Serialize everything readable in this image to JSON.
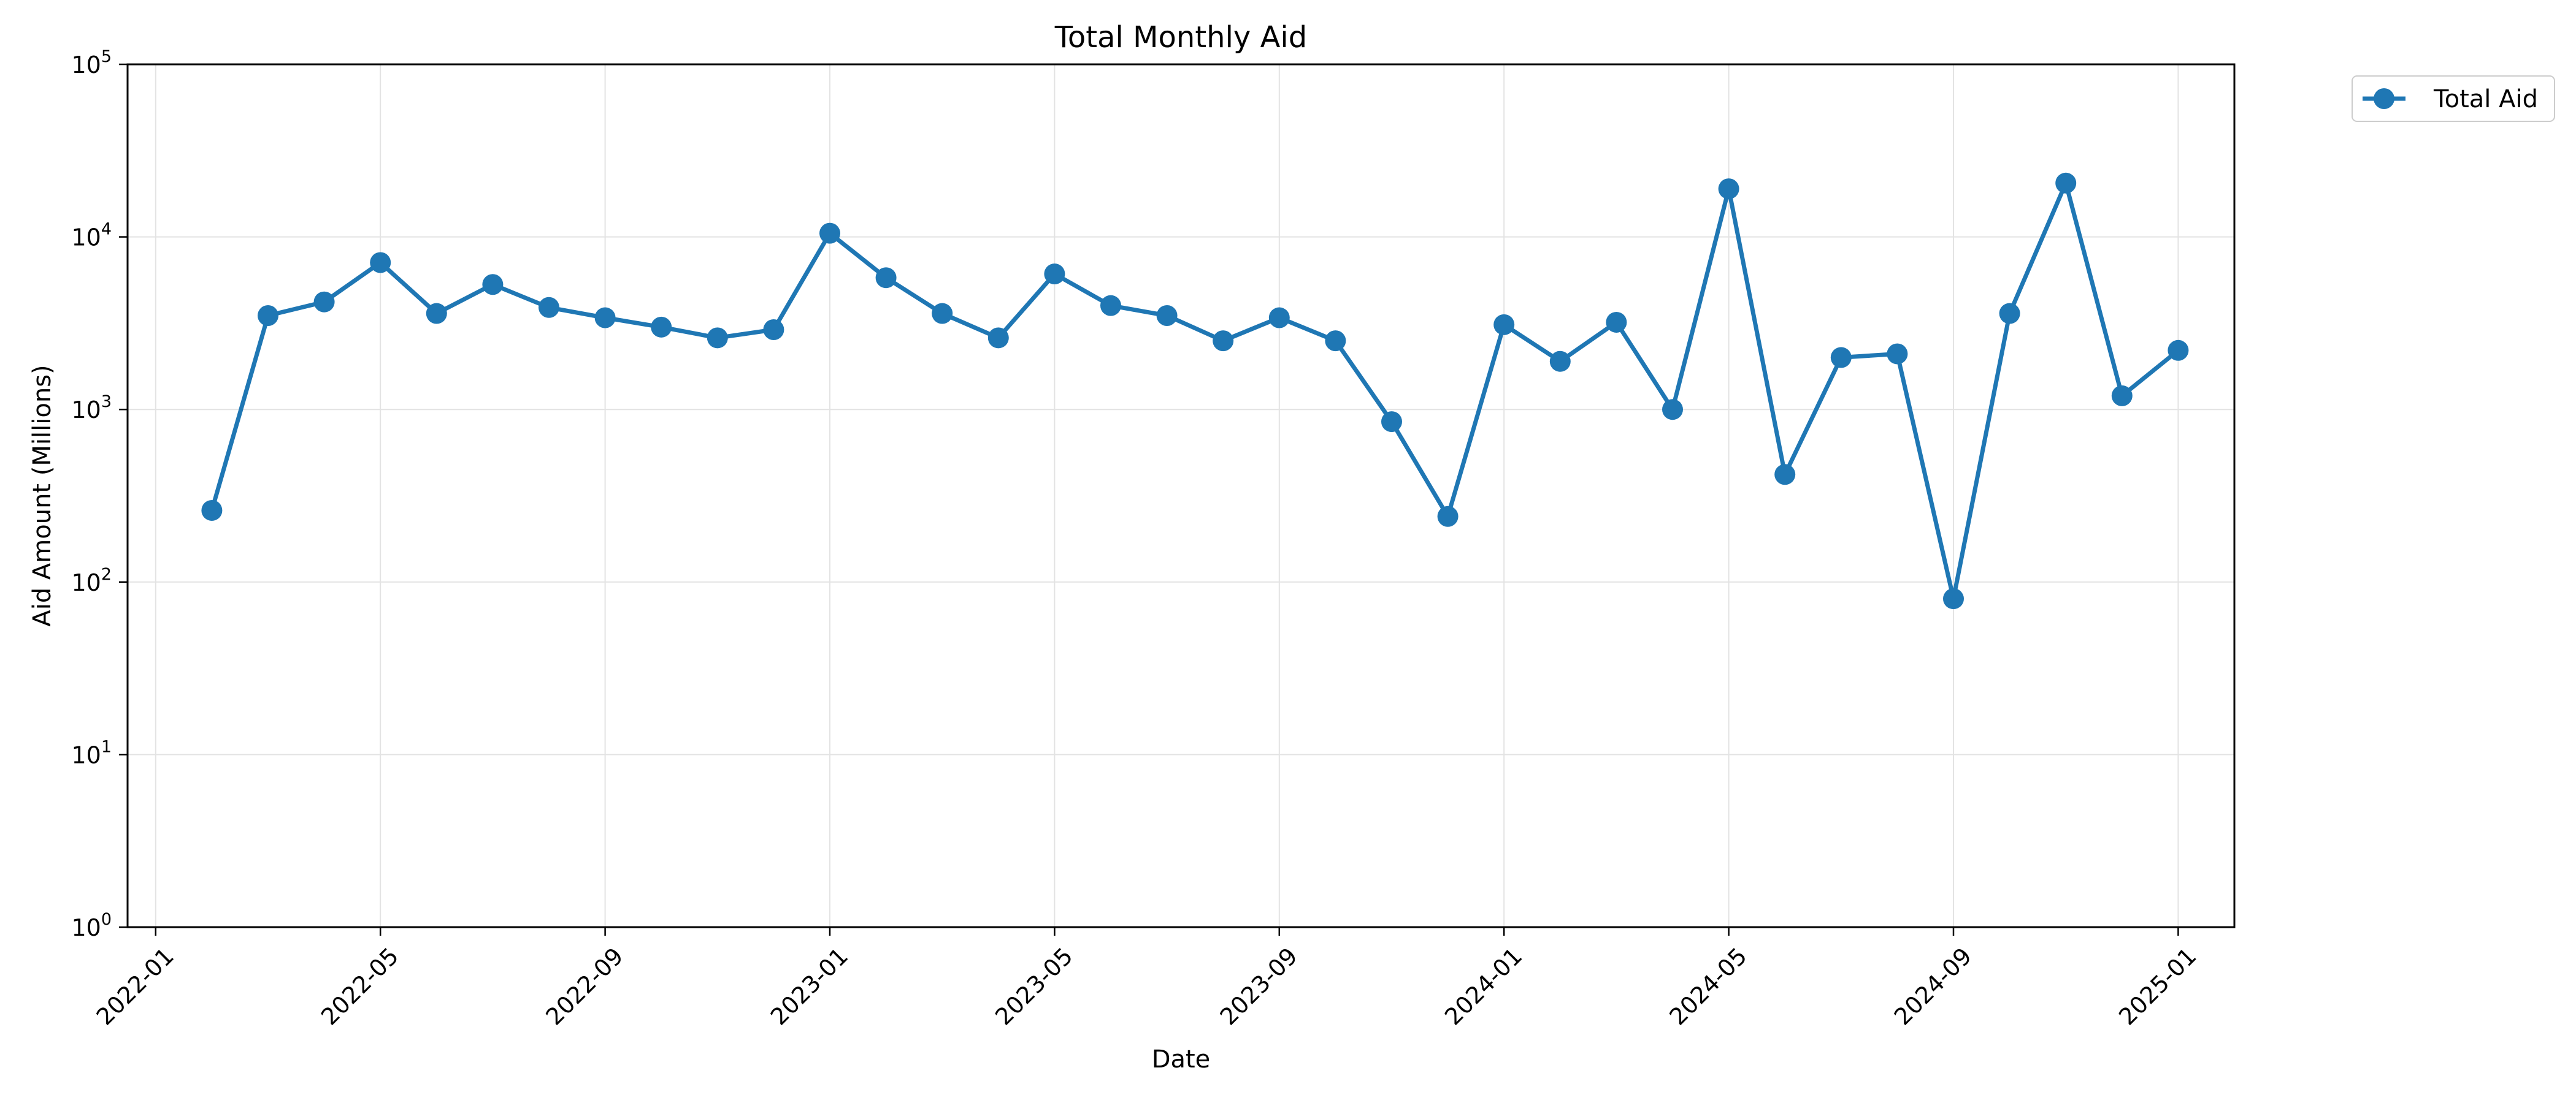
{
  "chart_data": {
    "type": "line",
    "title": "Total Monthly Aid",
    "xlabel": "Date",
    "ylabel": "Aid Amount (Millions)",
    "yscale": "log",
    "ylim": [
      1,
      100000
    ],
    "xlim": [
      "2021-12",
      "2025-02"
    ],
    "grid": true,
    "legend_position": "outside-top-right",
    "x_ticks": [
      "2022-01",
      "2022-05",
      "2022-09",
      "2023-01",
      "2023-05",
      "2023-09",
      "2024-01",
      "2024-05",
      "2024-09",
      "2025-01"
    ],
    "y_ticks": [
      {
        "value": 1,
        "base": "10",
        "exp": "0"
      },
      {
        "value": 10,
        "base": "10",
        "exp": "1"
      },
      {
        "value": 100,
        "base": "10",
        "exp": "2"
      },
      {
        "value": 1000,
        "base": "10",
        "exp": "3"
      },
      {
        "value": 10000,
        "base": "10",
        "exp": "4"
      },
      {
        "value": 100000,
        "base": "10",
        "exp": "5"
      }
    ],
    "series": [
      {
        "name": "Total Aid",
        "color": "#1f77b4",
        "x": [
          "2022-02",
          "2022-03",
          "2022-04",
          "2022-05",
          "2022-06",
          "2022-07",
          "2022-08",
          "2022-09",
          "2022-10",
          "2022-11",
          "2022-12",
          "2023-01",
          "2023-02",
          "2023-03",
          "2023-04",
          "2023-05",
          "2023-06",
          "2023-07",
          "2023-08",
          "2023-09",
          "2023-10",
          "2023-11",
          "2023-12",
          "2024-01",
          "2024-02",
          "2024-03",
          "2024-04",
          "2024-05",
          "2024-06",
          "2024-07",
          "2024-08",
          "2024-09",
          "2024-10",
          "2024-11",
          "2024-12",
          "2025-01"
        ],
        "values": [
          260,
          3500,
          4200,
          7100,
          3600,
          5300,
          3900,
          3400,
          3000,
          2600,
          2900,
          10500,
          5800,
          3600,
          2600,
          6100,
          4000,
          3500,
          2500,
          3400,
          2500,
          850,
          240,
          3100,
          1900,
          3200,
          1000,
          19000,
          420,
          2000,
          2100,
          80,
          3600,
          20500,
          1200,
          2200
        ]
      }
    ]
  }
}
